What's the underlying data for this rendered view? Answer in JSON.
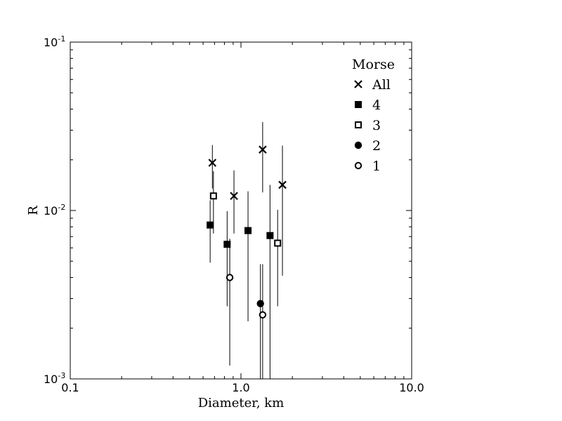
{
  "chart_data": {
    "type": "scatter",
    "xlabel": "Diameter, km",
    "ylabel": "R",
    "xscale": "log",
    "yscale": "log",
    "xlim": [
      0.1,
      10.0
    ],
    "ylim": [
      0.001,
      0.1
    ],
    "x_ticks": [
      {
        "value": 0.1,
        "label": "0.1"
      },
      {
        "value": 1.0,
        "label": "1.0"
      },
      {
        "value": 10.0,
        "label": "10.0"
      }
    ],
    "y_ticks": [
      {
        "value": 0.001,
        "base": "10",
        "exp": "-3"
      },
      {
        "value": 0.01,
        "base": "10",
        "exp": "-2"
      },
      {
        "value": 0.1,
        "base": "10",
        "exp": "-1"
      }
    ],
    "grid": false,
    "legend": {
      "title": "Morse",
      "position": "top-right",
      "entries": [
        {
          "name": "All",
          "marker": "x"
        },
        {
          "name": "4",
          "marker": "filled-square"
        },
        {
          "name": "3",
          "marker": "open-square"
        },
        {
          "name": "2",
          "marker": "filled-circle"
        },
        {
          "name": "1",
          "marker": "open-circle"
        }
      ]
    },
    "series": [
      {
        "name": "All",
        "marker": "x",
        "points": [
          {
            "x": 0.68,
            "y": 0.0192,
            "ylo": 0.0135,
            "yhi": 0.0245
          },
          {
            "x": 0.91,
            "y": 0.0122,
            "ylo": 0.0073,
            "yhi": 0.0173
          },
          {
            "x": 1.34,
            "y": 0.023,
            "ylo": 0.0128,
            "yhi": 0.0335
          },
          {
            "x": 1.75,
            "y": 0.0142,
            "ylo": 0.0041,
            "yhi": 0.0243
          }
        ]
      },
      {
        "name": "4",
        "marker": "filled-square",
        "points": [
          {
            "x": 0.66,
            "y": 0.0082,
            "ylo": 0.0049,
            "yhi": 0.0115
          },
          {
            "x": 0.83,
            "y": 0.0063,
            "ylo": 0.0027,
            "yhi": 0.0099
          },
          {
            "x": 1.1,
            "y": 0.0076,
            "ylo": 0.0022,
            "yhi": 0.013
          },
          {
            "x": 1.48,
            "y": 0.0071,
            "ylo": 0.001,
            "yhi": 0.0142
          }
        ]
      },
      {
        "name": "3",
        "marker": "open-square",
        "points": [
          {
            "x": 0.69,
            "y": 0.0122,
            "ylo": 0.0073,
            "yhi": 0.0171
          },
          {
            "x": 1.64,
            "y": 0.0064,
            "ylo": 0.0027,
            "yhi": 0.0101
          }
        ]
      },
      {
        "name": "2",
        "marker": "filled-circle",
        "points": [
          {
            "x": 1.3,
            "y": 0.0028,
            "ylo": 0.001,
            "yhi": 0.0048
          }
        ]
      },
      {
        "name": "1",
        "marker": "open-circle",
        "points": [
          {
            "x": 0.86,
            "y": 0.004,
            "ylo": 0.0012,
            "yhi": 0.0068
          },
          {
            "x": 1.34,
            "y": 0.0024,
            "ylo": 0.001,
            "yhi": 0.0048
          }
        ]
      }
    ]
  }
}
